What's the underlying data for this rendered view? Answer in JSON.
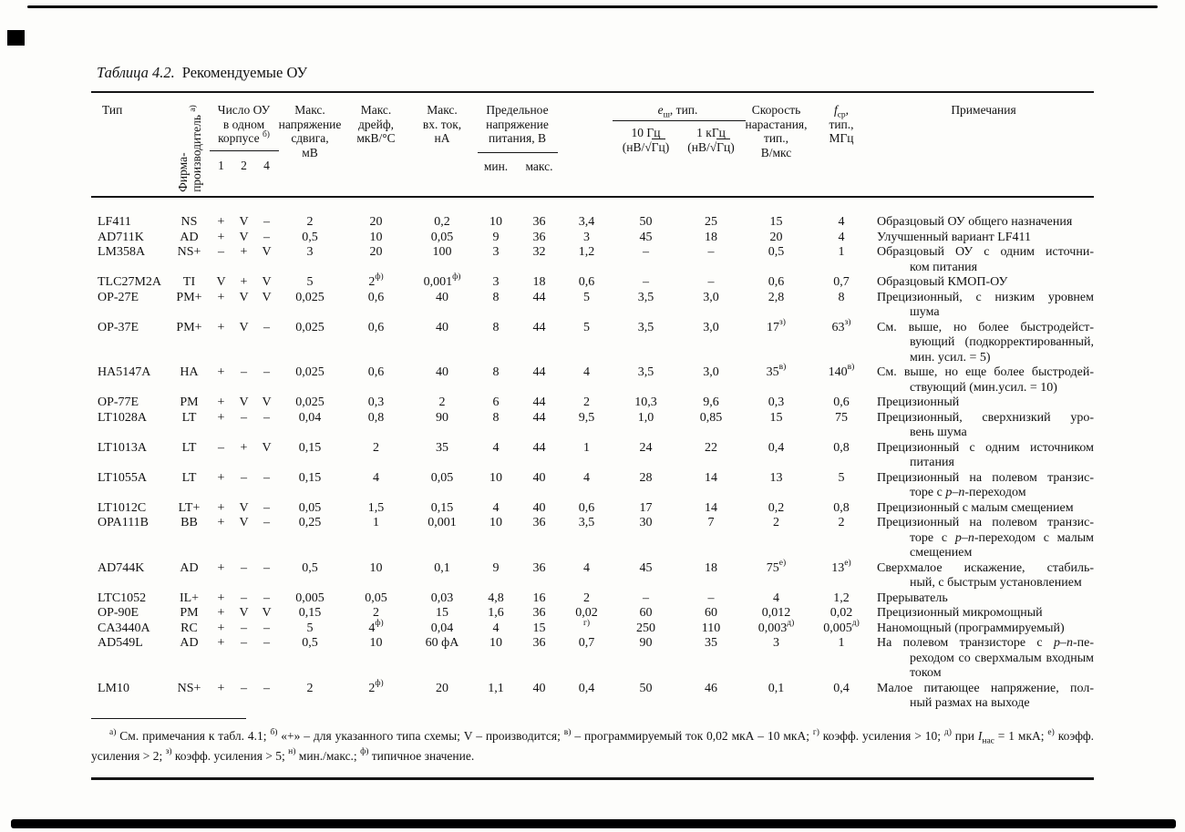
{
  "title": {
    "number": "Таблица 4.2.",
    "text": "Рекомендуемые ОУ"
  },
  "header": {
    "type": "Тип",
    "mfr_lines": [
      "Фирма-",
      "производитель ^{а)}"
    ],
    "count_lines": [
      "Число ОУ",
      "в одном",
      "корпусе ^{б)}"
    ],
    "count_subs": [
      "1",
      "2",
      "4"
    ],
    "vos_lines": [
      "Макс.",
      "напряжение",
      "сдвига,",
      "мВ"
    ],
    "drift_lines": [
      "Макс.",
      "дрейф,",
      "мкВ/°С"
    ],
    "ib_lines": [
      "Макс.",
      "вх. ток,",
      "нА"
    ],
    "supply_lines": [
      "Предельное",
      "напряжение",
      "питания, В"
    ],
    "supply_subs": [
      "мин.",
      "макс."
    ],
    "noise_title": "*e*_{ш}, тип.",
    "noise_sub_1": [
      "10 Гц",
      "(нВ/√~{Гц})"
    ],
    "noise_sub_2": [
      "1 кГц",
      "(нВ/√~{Гц})"
    ],
    "slew_lines": [
      "Скорость",
      "нарастания,",
      "тип.,",
      "В/мкс"
    ],
    "fc_lines": [
      "*f*_{ср},",
      "тип.,",
      "МГц"
    ],
    "notes": "Примечания"
  },
  "rows": [
    {
      "type": "LF411",
      "mfr": "NS",
      "pkg": [
        "+",
        "V",
        "–"
      ],
      "vos": "2",
      "drift": "20",
      "ib": "0,2",
      "vmin": "10",
      "vmax": "36",
      "iq": "3,4",
      "en10": "50",
      "en1k": "25",
      "slew": "15",
      "fc": "4",
      "note": [
        "Образцовый ОУ общего назначения"
      ]
    },
    {
      "type": "AD711K",
      "mfr": "AD",
      "pkg": [
        "+",
        "V",
        "–"
      ],
      "vos": "0,5",
      "drift": "10",
      "ib": "0,05",
      "vmin": "9",
      "vmax": "36",
      "iq": "3",
      "en10": "45",
      "en1k": "18",
      "slew": "20",
      "fc": "4",
      "note": [
        "Улучшенный вариант LF411"
      ]
    },
    {
      "type": "LM358A",
      "mfr": "NS+",
      "pkg": [
        "–",
        "+",
        "V"
      ],
      "vos": "3",
      "drift": "20",
      "ib": "100",
      "vmin": "3",
      "vmax": "32",
      "iq": "1,2",
      "en10": "–",
      "en1k": "–",
      "slew": "0,5",
      "fc": "1",
      "note": [
        "Образцовый ОУ с одним источни-",
        "ком питания"
      ]
    },
    {
      "type": "TLC27M2A",
      "mfr": "TI",
      "pkg": [
        "V",
        "+",
        "V"
      ],
      "vos": "5",
      "drift": "2^{ф)}",
      "ib": "0,001^{ф)}",
      "vmin": "3",
      "vmax": "18",
      "iq": "0,6",
      "en10": "–",
      "en1k": "–",
      "slew": "0,6",
      "fc": "0,7",
      "note": [
        "Образцовый КМОП-ОУ"
      ]
    },
    {
      "type": "OP-27E",
      "mfr": "PM+",
      "pkg": [
        "+",
        "V",
        "V"
      ],
      "vos": "0,025",
      "drift": "0,6",
      "ib": "40",
      "vmin": "8",
      "vmax": "44",
      "iq": "5",
      "en10": "3,5",
      "en1k": "3,0",
      "slew": "2,8",
      "fc": "8",
      "note": [
        "Прецизионный, с низким уровнем",
        "шума"
      ]
    },
    {
      "type": "OP-37E",
      "mfr": "PM+",
      "pkg": [
        "+",
        "V",
        "–"
      ],
      "vos": "0,025",
      "drift": "0,6",
      "ib": "40",
      "vmin": "8",
      "vmax": "44",
      "iq": "5",
      "en10": "3,5",
      "en1k": "3,0",
      "slew": "17^{з)}",
      "fc": "63^{з)}",
      "note": [
        "См. выше, но более быстродейст-",
        "вующий (подкорректированный,",
        "мин. усил. = 5)"
      ]
    },
    {
      "type": "HA5147A",
      "mfr": "HA",
      "pkg": [
        "+",
        "–",
        "–"
      ],
      "vos": "0,025",
      "drift": "0,6",
      "ib": "40",
      "vmin": "8",
      "vmax": "44",
      "iq": "4",
      "en10": "3,5",
      "en1k": "3,0",
      "slew": "35^{в)}",
      "fc": "140^{в)}",
      "note": [
        "См. выше, но еще более быстродей-",
        "ствующий (мин.усил. = 10)"
      ]
    },
    {
      "type": "OP-77E",
      "mfr": "PM",
      "pkg": [
        "+",
        "V",
        "V"
      ],
      "vos": "0,025",
      "drift": "0,3",
      "ib": "2",
      "vmin": "6",
      "vmax": "44",
      "iq": "2",
      "en10": "10,3",
      "en1k": "9,6",
      "slew": "0,3",
      "fc": "0,6",
      "note": [
        "Прецизионный"
      ]
    },
    {
      "type": "LT1028A",
      "mfr": "LT",
      "pkg": [
        "+",
        "–",
        "–"
      ],
      "vos": "0,04",
      "drift": "0,8",
      "ib": "90",
      "vmin": "8",
      "vmax": "44",
      "iq": "9,5",
      "en10": "1,0",
      "en1k": "0,85",
      "slew": "15",
      "fc": "75",
      "note": [
        "Прецизионный, сверхнизкий уро-",
        "вень шума"
      ]
    },
    {
      "type": "LT1013A",
      "mfr": "LT",
      "pkg": [
        "–",
        "+",
        "V"
      ],
      "vos": "0,15",
      "drift": "2",
      "ib": "35",
      "vmin": "4",
      "vmax": "44",
      "iq": "1",
      "en10": "24",
      "en1k": "22",
      "slew": "0,4",
      "fc": "0,8",
      "note": [
        "Прецизионный с одним источником",
        "питания"
      ]
    },
    {
      "type": "LT1055A",
      "mfr": "LT",
      "pkg": [
        "+",
        "–",
        "–"
      ],
      "vos": "0,15",
      "drift": "4",
      "ib": "0,05",
      "vmin": "10",
      "vmax": "40",
      "iq": "4",
      "en10": "28",
      "en1k": "14",
      "slew": "13",
      "fc": "5",
      "note": [
        "Прецизионный на полевом транзис-",
        "торе с *p–n*-переходом"
      ]
    },
    {
      "type": "LT1012C",
      "mfr": "LT+",
      "pkg": [
        "+",
        "V",
        "–"
      ],
      "vos": "0,05",
      "drift": "1,5",
      "ib": "0,15",
      "vmin": "4",
      "vmax": "40",
      "iq": "0,6",
      "en10": "17",
      "en1k": "14",
      "slew": "0,2",
      "fc": "0,8",
      "note": [
        "Прецизионный с малым смещением"
      ]
    },
    {
      "type": "OPA111B",
      "mfr": "BB",
      "pkg": [
        "+",
        "V",
        "–"
      ],
      "vos": "0,25",
      "drift": "1",
      "ib": "0,001",
      "vmin": "10",
      "vmax": "36",
      "iq": "3,5",
      "en10": "30",
      "en1k": "7",
      "slew": "2",
      "fc": "2",
      "note": [
        "Прецизионный на полевом транзис-",
        "торе с *p–n*-переходом с малым",
        "смещением"
      ]
    },
    {
      "type": "AD744K",
      "mfr": "AD",
      "pkg": [
        "+",
        "–",
        "–"
      ],
      "vos": "0,5",
      "drift": "10",
      "ib": "0,1",
      "vmin": "9",
      "vmax": "36",
      "iq": "4",
      "en10": "45",
      "en1k": "18",
      "slew": "75^{е)}",
      "fc": "13^{е)}",
      "note": [
        "Сверхмалое искажение, стабиль-",
        "ный, с быстрым установлением"
      ]
    },
    {
      "type": "LTC1052",
      "mfr": "IL+",
      "pkg": [
        "+",
        "–",
        "–"
      ],
      "vos": "0,005",
      "drift": "0,05",
      "ib": "0,03",
      "vmin": "4,8",
      "vmax": "16",
      "iq": "2",
      "en10": "–",
      "en1k": "–",
      "slew": "4",
      "fc": "1,2",
      "note": [
        "Прерыватель"
      ]
    },
    {
      "type": "OP-90E",
      "mfr": "PM",
      "pkg": [
        "+",
        "V",
        "V"
      ],
      "vos": "0,15",
      "drift": "2",
      "ib": "15",
      "vmin": "1,6",
      "vmax": "36",
      "iq": "0,02",
      "en10": "60",
      "en1k": "60",
      "slew": "0,012",
      "fc": "0,02",
      "note": [
        "Прецизионный микромощный"
      ]
    },
    {
      "type": "CA3440A",
      "mfr": "RC",
      "pkg": [
        "+",
        "–",
        "–"
      ],
      "vos": "5",
      "drift": "4^{ф)}",
      "ib": "0,04",
      "vmin": "4",
      "vmax": "15",
      "iq": "^{г)}",
      "en10": "250",
      "en1k": "110",
      "slew": "0,003^{д)}",
      "fc": "0,005^{д)}",
      "note": [
        "Наномощный (программируемый)"
      ]
    },
    {
      "type": "AD549L",
      "mfr": "AD",
      "pkg": [
        "+",
        "–",
        "–"
      ],
      "vos": "0,5",
      "drift": "10",
      "ib": "60 фА",
      "vmin": "10",
      "vmax": "36",
      "iq": "0,7",
      "en10": "90",
      "en1k": "35",
      "slew": "3",
      "fc": "1",
      "note": [
        "На полевом транзисторе с *p–n*-пе-",
        "реходом со сверхмалым входным",
        "током"
      ]
    },
    {
      "type": "LM10",
      "mfr": "NS+",
      "pkg": [
        "+",
        "–",
        "–"
      ],
      "vos": "2",
      "drift": "2^{ф)}",
      "ib": "20",
      "vmin": "1,1",
      "vmax": "40",
      "iq": "0,4",
      "en10": "50",
      "en1k": "46",
      "slew": "0,1",
      "fc": "0,4",
      "note": [
        "Малое питающее напряжение, пол-",
        "ный размах на выходе"
      ]
    }
  ],
  "footnote": "^{а)} См. примечания к табл. 4.1; ^{б)} «+» – для указанного типа схемы; V – производится; ^{в)} – программируемый ток 0,02 мкА – 10 мкА; ^{г)} коэфф. усиления > 10; ^{д)} при *I*_{нас} = 1 мкА; ^{е)} коэфф. усиления > 2; ^{з)} коэфф. усиления > 5; ^{н)} мин./макс.; ^{ф)} типичное значение."
}
